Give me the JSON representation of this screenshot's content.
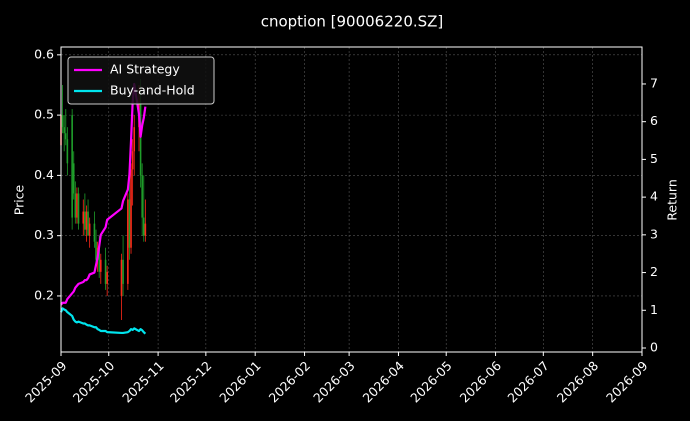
{
  "chart_data": {
    "type": "candlestick",
    "title": "cnoption [90006220.SZ]",
    "ylabel": "Price",
    "y2label": "Return",
    "x": [
      "2025-09-01",
      "2025-09-02",
      "2025-09-03",
      "2025-09-04",
      "2025-09-05",
      "2025-09-08",
      "2025-09-09",
      "2025-09-10",
      "2025-09-11",
      "2025-09-12",
      "2025-09-15",
      "2025-09-16",
      "2025-09-17",
      "2025-09-18",
      "2025-09-19",
      "2025-09-22",
      "2025-09-23",
      "2025-09-24",
      "2025-09-25",
      "2025-09-26",
      "2025-09-29",
      "2025-09-30",
      "2025-10-09",
      "2025-10-10",
      "2025-10-13",
      "2025-10-14",
      "2025-10-15",
      "2025-10-16",
      "2025-10-17",
      "2025-10-20",
      "2025-10-21",
      "2025-10-22",
      "2025-10-23",
      "2025-10-24"
    ],
    "open": [
      0.45,
      0.5,
      0.48,
      0.47,
      0.46,
      0.5,
      0.42,
      0.37,
      0.33,
      0.37,
      0.32,
      0.34,
      0.31,
      0.34,
      0.3,
      0.32,
      0.29,
      0.26,
      0.28,
      0.24,
      0.26,
      0.22,
      0.2,
      0.26,
      0.22,
      0.36,
      0.28,
      0.41,
      0.44,
      0.48,
      0.52,
      0.4,
      0.33,
      0.3
    ],
    "high": [
      0.52,
      0.55,
      0.5,
      0.51,
      0.48,
      0.51,
      0.44,
      0.39,
      0.38,
      0.38,
      0.36,
      0.37,
      0.35,
      0.36,
      0.33,
      0.34,
      0.31,
      0.29,
      0.3,
      0.27,
      0.28,
      0.25,
      0.27,
      0.3,
      0.37,
      0.4,
      0.42,
      0.46,
      0.5,
      0.55,
      0.56,
      0.42,
      0.4,
      0.36
    ],
    "low": [
      0.44,
      0.47,
      0.44,
      0.45,
      0.4,
      0.31,
      0.36,
      0.32,
      0.32,
      0.31,
      0.3,
      0.3,
      0.29,
      0.3,
      0.28,
      0.28,
      0.25,
      0.24,
      0.23,
      0.22,
      0.21,
      0.2,
      0.16,
      0.2,
      0.21,
      0.26,
      0.27,
      0.35,
      0.4,
      0.44,
      0.38,
      0.3,
      0.29,
      0.29
    ],
    "close": [
      0.5,
      0.48,
      0.47,
      0.46,
      0.42,
      0.33,
      0.37,
      0.33,
      0.37,
      0.32,
      0.34,
      0.31,
      0.34,
      0.3,
      0.32,
      0.29,
      0.26,
      0.28,
      0.24,
      0.26,
      0.22,
      0.24,
      0.26,
      0.22,
      0.36,
      0.28,
      0.41,
      0.44,
      0.48,
      0.52,
      0.4,
      0.33,
      0.3,
      0.32
    ],
    "up_color": "#ff2a1a",
    "down_color": "#1f9e2a",
    "series": [
      {
        "name": "AI Strategy",
        "color": "#ff00ff",
        "axis": "y2",
        "values": [
          1.15,
          1.2,
          1.2,
          1.2,
          1.3,
          1.45,
          1.5,
          1.6,
          1.65,
          1.7,
          1.75,
          1.8,
          1.8,
          1.85,
          1.95,
          2.0,
          2.2,
          2.4,
          2.7,
          3.0,
          3.2,
          3.4,
          3.7,
          3.9,
          4.2,
          4.6,
          5.5,
          6.5,
          7.0,
          6.2,
          5.6,
          5.9,
          6.1,
          6.4
        ]
      },
      {
        "name": "Buy-and-Hold",
        "color": "#00e5ee",
        "axis": "y2",
        "values": [
          0.95,
          1.05,
          1.02,
          1.0,
          0.95,
          0.85,
          0.75,
          0.7,
          0.68,
          0.7,
          0.65,
          0.65,
          0.62,
          0.6,
          0.6,
          0.55,
          0.55,
          0.5,
          0.48,
          0.45,
          0.45,
          0.42,
          0.4,
          0.4,
          0.42,
          0.45,
          0.5,
          0.48,
          0.52,
          0.45,
          0.5,
          0.47,
          0.42,
          0.38
        ]
      }
    ],
    "xlim": [
      "2025-09-01",
      "2026-09-01"
    ],
    "xticks": [
      {
        "value": "2025-09-01",
        "label": "2025-09"
      },
      {
        "value": "2025-10-01",
        "label": "2025-10"
      },
      {
        "value": "2025-11-01",
        "label": "2025-11"
      },
      {
        "value": "2025-12-01",
        "label": "2025-12"
      },
      {
        "value": "2026-01-01",
        "label": "2026-01"
      },
      {
        "value": "2026-02-01",
        "label": "2026-02"
      },
      {
        "value": "2026-03-01",
        "label": "2026-03"
      },
      {
        "value": "2026-04-01",
        "label": "2026-04"
      },
      {
        "value": "2026-05-01",
        "label": "2026-05"
      },
      {
        "value": "2026-06-01",
        "label": "2026-06"
      },
      {
        "value": "2026-07-01",
        "label": "2026-07"
      },
      {
        "value": "2026-08-01",
        "label": "2026-08"
      },
      {
        "value": "2026-09-01",
        "label": "2026-09"
      }
    ],
    "ylim": [
      0.107,
      0.613
    ],
    "yticks": [
      0.2,
      0.3,
      0.4,
      0.5,
      0.6
    ],
    "y2lim": [
      -0.106,
      7.98
    ],
    "y2ticks": [
      0,
      1,
      2,
      3,
      4,
      5,
      6,
      7
    ],
    "grid": true,
    "legend": "upper left"
  }
}
